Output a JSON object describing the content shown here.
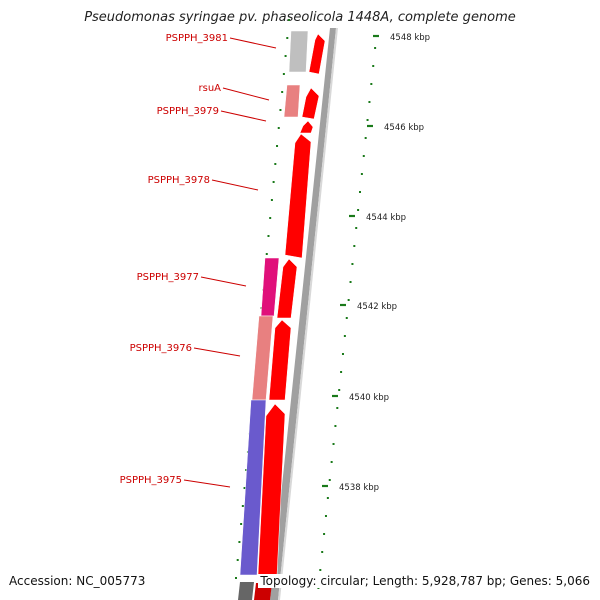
{
  "title": "Pseudomonas syringae pv. phaseolicola 1448A, complete genome",
  "footer": {
    "accession": "Accession: NC_005773",
    "topology": "Topology: circular; Length: 5,928,787 bp; Genes: 5,066"
  },
  "scale_ticks": [
    {
      "label": "4548 kbp",
      "kbp": 4548
    },
    {
      "label": "4546 kbp",
      "kbp": 4546
    },
    {
      "label": "4544 kbp",
      "kbp": 4544
    },
    {
      "label": "4542 kbp",
      "kbp": 4542
    },
    {
      "label": "4540 kbp",
      "kbp": 4540
    },
    {
      "label": "4538 kbp",
      "kbp": 4538
    }
  ],
  "genes": [
    {
      "label": "PSPPH_3981",
      "color": "#bfbfbf"
    },
    {
      "label": "rsuA",
      "color": "#e88080"
    },
    {
      "label": "PSPPH_3979",
      "color": "#ff0000"
    },
    {
      "label": "PSPPH_3978",
      "color": "#ff0000"
    },
    {
      "label": "PSPPH_3977",
      "color": "#e0107a"
    },
    {
      "label": "PSPPH_3976",
      "color": "#e88080"
    },
    {
      "label": "PSPPH_3975",
      "color": "#6a5acd"
    }
  ],
  "colors": {
    "label_red": "#cc0000",
    "tick_green": "#1a7a1a",
    "backbone": "#a0a0a0"
  }
}
